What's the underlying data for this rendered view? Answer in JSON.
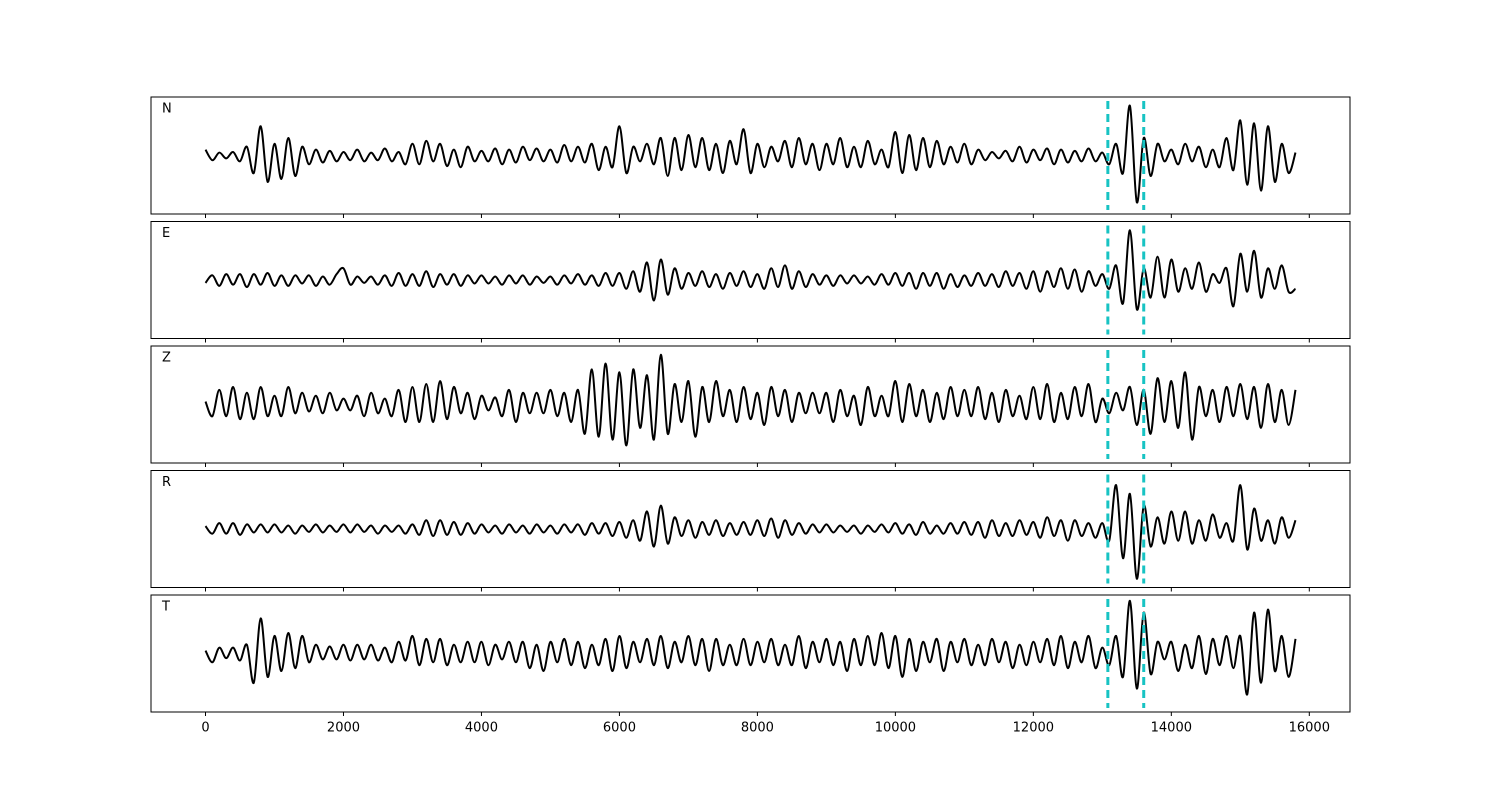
{
  "chart_data": {
    "type": "line",
    "subplots": true,
    "x": [
      0,
      100,
      200,
      300,
      400,
      500,
      600,
      700,
      800,
      900,
      1000,
      1100,
      1200,
      1300,
      1400,
      1500,
      1600,
      1700,
      1800,
      1900,
      2000,
      2100,
      2200,
      2300,
      2400,
      2500,
      2600,
      2700,
      2800,
      2900,
      3000,
      3100,
      3200,
      3300,
      3400,
      3500,
      3600,
      3700,
      3800,
      3900,
      4000,
      4100,
      4200,
      4300,
      4400,
      4500,
      4600,
      4700,
      4800,
      4900,
      5000,
      5100,
      5200,
      5300,
      5400,
      5500,
      5600,
      5700,
      5800,
      5900,
      6000,
      6100,
      6200,
      6300,
      6400,
      6500,
      6600,
      6700,
      6800,
      6900,
      7000,
      7100,
      7200,
      7300,
      7400,
      7500,
      7600,
      7700,
      7800,
      7900,
      8000,
      8100,
      8200,
      8300,
      8400,
      8500,
      8600,
      8700,
      8800,
      8900,
      9000,
      9100,
      9200,
      9300,
      9400,
      9500,
      9600,
      9700,
      9800,
      9900,
      10000,
      10100,
      10200,
      10300,
      10400,
      10500,
      10600,
      10700,
      10800,
      10900,
      11000,
      11100,
      11200,
      11300,
      11400,
      11500,
      11600,
      11700,
      11800,
      11900,
      12000,
      12100,
      12200,
      12300,
      12400,
      12500,
      12600,
      12700,
      12800,
      12900,
      13000,
      13100,
      13200,
      13300,
      13400,
      13500,
      13600,
      13700,
      13800,
      13900,
      14000,
      14100,
      14200,
      14300,
      14400,
      14500,
      14600,
      14700,
      14800,
      14900,
      15000,
      15100,
      15200,
      15300,
      15400,
      15500,
      15600,
      15700,
      15800
    ],
    "xlim": [
      -790,
      16590
    ],
    "xticks": [
      0,
      2000,
      4000,
      6000,
      8000,
      10000,
      12000,
      14000,
      16000
    ],
    "ylim": [
      -1,
      1
    ],
    "vlines": [
      13080,
      13600
    ],
    "vline_color": "#17c3c3",
    "series": [
      {
        "name": "N",
        "color": "#000000",
        "values": [
          0.1,
          -0.08,
          0.05,
          -0.05,
          0.06,
          -0.1,
          0.15,
          -0.3,
          0.5,
          -0.45,
          0.2,
          -0.4,
          0.3,
          -0.35,
          0.15,
          -0.15,
          0.1,
          -0.12,
          0.08,
          -0.1,
          0.06,
          -0.08,
          0.1,
          -0.1,
          0.05,
          -0.08,
          0.12,
          -0.1,
          0.06,
          -0.15,
          0.2,
          -0.15,
          0.25,
          -0.1,
          0.2,
          -0.18,
          0.1,
          -0.2,
          0.15,
          -0.1,
          0.08,
          -0.1,
          0.12,
          -0.15,
          0.1,
          -0.12,
          0.15,
          -0.08,
          0.12,
          -0.1,
          0.1,
          -0.12,
          0.18,
          -0.1,
          0.15,
          -0.12,
          0.2,
          -0.25,
          0.15,
          -0.2,
          0.5,
          -0.3,
          0.15,
          -0.1,
          0.2,
          -0.15,
          0.3,
          -0.35,
          0.3,
          -0.25,
          0.35,
          -0.2,
          0.3,
          -0.25,
          0.2,
          -0.3,
          0.25,
          -0.15,
          0.45,
          -0.3,
          0.2,
          -0.2,
          0.15,
          -0.1,
          0.25,
          -0.2,
          0.3,
          -0.15,
          0.2,
          -0.25,
          0.2,
          -0.15,
          0.3,
          -0.2,
          0.15,
          -0.2,
          0.25,
          -0.15,
          0.1,
          -0.2,
          0.4,
          -0.3,
          0.35,
          -0.25,
          0.3,
          -0.2,
          0.25,
          -0.15,
          0.15,
          -0.12,
          0.2,
          -0.15,
          0.1,
          -0.08,
          0.06,
          -0.05,
          0.08,
          -0.1,
          0.15,
          -0.12,
          0.1,
          -0.08,
          0.12,
          -0.15,
          0.1,
          -0.12,
          0.08,
          -0.1,
          0.12,
          -0.1,
          0.05,
          -0.15,
          0.2,
          -0.3,
          0.85,
          -0.8,
          0.3,
          -0.35,
          0.2,
          -0.1,
          0.1,
          -0.15,
          0.2,
          -0.1,
          0.15,
          -0.2,
          0.1,
          -0.2,
          0.3,
          -0.25,
          0.6,
          -0.5,
          0.55,
          -0.6,
          0.5,
          -0.45,
          0.2,
          -0.3,
          0.05
        ]
      },
      {
        "name": "E",
        "color": "#000000",
        "values": [
          -0.05,
          0.08,
          -0.1,
          0.1,
          -0.08,
          0.1,
          -0.12,
          0.1,
          -0.08,
          0.12,
          -0.1,
          0.08,
          -0.1,
          0.08,
          -0.06,
          0.08,
          -0.1,
          0.06,
          -0.08,
          0.1,
          0.2,
          -0.08,
          0.06,
          -0.05,
          0.06,
          -0.08,
          0.08,
          -0.1,
          0.12,
          -0.1,
          0.1,
          -0.1,
          0.15,
          -0.12,
          0.1,
          -0.08,
          0.1,
          -0.1,
          0.08,
          -0.06,
          0.08,
          -0.06,
          0.06,
          -0.08,
          0.08,
          -0.06,
          0.08,
          -0.08,
          0.06,
          -0.05,
          0.06,
          -0.08,
          0.08,
          -0.06,
          0.1,
          -0.08,
          0.08,
          -0.1,
          0.12,
          -0.1,
          0.12,
          -0.15,
          0.15,
          -0.2,
          0.3,
          -0.35,
          0.35,
          -0.25,
          0.2,
          -0.15,
          0.12,
          -0.1,
          0.15,
          -0.12,
          0.1,
          -0.15,
          0.12,
          -0.1,
          0.15,
          -0.12,
          0.1,
          -0.15,
          0.2,
          -0.12,
          0.25,
          -0.15,
          0.15,
          -0.12,
          0.1,
          -0.08,
          0.08,
          -0.1,
          0.08,
          -0.06,
          0.08,
          -0.06,
          0.06,
          -0.08,
          0.1,
          -0.08,
          0.12,
          -0.1,
          0.12,
          -0.15,
          0.12,
          -0.1,
          0.12,
          -0.15,
          0.1,
          -0.12,
          0.08,
          -0.1,
          0.12,
          -0.1,
          0.1,
          -0.12,
          0.15,
          -0.1,
          0.12,
          -0.15,
          0.15,
          -0.2,
          0.15,
          -0.12,
          0.2,
          -0.15,
          0.18,
          -0.2,
          0.15,
          -0.1,
          0.1,
          -0.15,
          0.25,
          -0.4,
          0.85,
          -0.5,
          0.2,
          -0.3,
          0.4,
          -0.3,
          0.35,
          -0.2,
          0.2,
          -0.15,
          0.3,
          -0.2,
          0.1,
          -0.05,
          0.2,
          -0.45,
          0.45,
          -0.2,
          0.5,
          -0.3,
          0.2,
          -0.15,
          0.25,
          -0.2,
          -0.15
        ]
      },
      {
        "name": "Z",
        "color": "#000000",
        "values": [
          0.05,
          -0.2,
          0.25,
          -0.2,
          0.3,
          -0.25,
          0.2,
          -0.25,
          0.3,
          -0.2,
          0.15,
          -0.2,
          0.3,
          -0.15,
          0.2,
          -0.12,
          0.15,
          -0.15,
          0.2,
          -0.1,
          0.1,
          -0.1,
          0.15,
          -0.2,
          0.2,
          -0.15,
          0.1,
          -0.2,
          0.25,
          -0.3,
          0.3,
          -0.3,
          0.35,
          -0.3,
          0.4,
          -0.25,
          0.3,
          -0.15,
          0.2,
          -0.25,
          0.15,
          -0.1,
          0.12,
          -0.2,
          0.25,
          -0.3,
          0.2,
          -0.15,
          0.2,
          -0.15,
          0.25,
          -0.2,
          0.2,
          -0.3,
          0.25,
          -0.5,
          0.6,
          -0.55,
          0.7,
          -0.6,
          0.55,
          -0.7,
          0.6,
          -0.4,
          0.5,
          -0.6,
          0.85,
          -0.5,
          0.35,
          -0.3,
          0.4,
          -0.55,
          0.3,
          -0.3,
          0.4,
          -0.2,
          0.25,
          -0.3,
          0.3,
          -0.25,
          0.2,
          -0.35,
          0.3,
          -0.2,
          0.25,
          -0.3,
          0.2,
          -0.15,
          0.2,
          -0.15,
          0.2,
          -0.3,
          0.25,
          -0.2,
          0.15,
          -0.35,
          0.3,
          -0.2,
          0.15,
          -0.2,
          0.4,
          -0.3,
          0.35,
          -0.2,
          0.25,
          -0.3,
          0.2,
          -0.25,
          0.3,
          -0.2,
          0.25,
          -0.2,
          0.3,
          -0.25,
          0.2,
          -0.3,
          0.25,
          -0.2,
          0.15,
          -0.25,
          0.3,
          -0.25,
          0.35,
          -0.3,
          0.2,
          -0.25,
          0.3,
          -0.2,
          0.35,
          -0.3,
          0.1,
          -0.15,
          0.2,
          -0.1,
          0.3,
          -0.35,
          0.25,
          -0.5,
          0.45,
          -0.3,
          0.4,
          -0.4,
          0.55,
          -0.6,
          0.3,
          -0.2,
          0.25,
          -0.3,
          0.3,
          -0.2,
          0.35,
          -0.25,
          0.3,
          -0.4,
          0.35,
          -0.3,
          0.25,
          -0.35,
          0.25
        ]
      },
      {
        "name": "R",
        "color": "#000000",
        "values": [
          0.05,
          -0.08,
          0.1,
          -0.08,
          0.1,
          -0.1,
          0.08,
          -0.06,
          0.08,
          -0.06,
          0.08,
          -0.06,
          0.06,
          -0.08,
          0.06,
          -0.05,
          0.08,
          -0.06,
          0.06,
          -0.05,
          0.08,
          -0.06,
          0.08,
          -0.05,
          0.06,
          -0.08,
          0.06,
          -0.05,
          0.06,
          -0.08,
          0.08,
          -0.1,
          0.15,
          -0.12,
          0.15,
          -0.1,
          0.12,
          -0.1,
          0.1,
          -0.08,
          0.08,
          -0.06,
          0.06,
          -0.08,
          0.08,
          -0.06,
          0.06,
          -0.08,
          0.08,
          -0.06,
          0.06,
          -0.08,
          0.08,
          -0.06,
          0.08,
          -0.1,
          0.1,
          -0.08,
          0.1,
          -0.12,
          0.12,
          -0.15,
          0.15,
          -0.2,
          0.3,
          -0.3,
          0.4,
          -0.25,
          0.2,
          -0.12,
          0.15,
          -0.15,
          0.12,
          -0.1,
          0.15,
          -0.12,
          0.1,
          -0.1,
          0.12,
          -0.1,
          0.15,
          -0.12,
          0.18,
          -0.15,
          0.15,
          -0.1,
          0.1,
          -0.08,
          0.08,
          -0.06,
          0.08,
          -0.06,
          0.06,
          -0.05,
          0.06,
          -0.08,
          0.06,
          -0.05,
          0.08,
          -0.06,
          0.1,
          -0.08,
          0.08,
          -0.1,
          0.12,
          -0.08,
          0.06,
          -0.08,
          0.1,
          -0.08,
          0.12,
          -0.1,
          0.12,
          -0.15,
          0.15,
          -0.12,
          0.1,
          -0.12,
          0.15,
          -0.1,
          0.12,
          -0.15,
          0.2,
          -0.12,
          0.15,
          -0.2,
          0.15,
          -0.12,
          0.1,
          -0.15,
          0.1,
          -0.2,
          0.75,
          -0.5,
          0.6,
          -0.85,
          0.4,
          -0.3,
          0.2,
          -0.25,
          0.3,
          -0.2,
          0.3,
          -0.25,
          0.15,
          -0.2,
          0.25,
          -0.15,
          0.1,
          -0.2,
          0.75,
          -0.35,
          0.35,
          -0.2,
          0.15,
          -0.25,
          0.2,
          -0.15,
          0.15
        ]
      },
      {
        "name": "T",
        "color": "#000000",
        "values": [
          0.05,
          -0.15,
          0.1,
          -0.08,
          0.1,
          -0.12,
          0.15,
          -0.5,
          0.6,
          -0.4,
          0.3,
          -0.3,
          0.35,
          -0.25,
          0.3,
          -0.15,
          0.15,
          -0.1,
          0.12,
          -0.1,
          0.15,
          -0.12,
          0.15,
          -0.1,
          0.15,
          -0.12,
          0.1,
          -0.15,
          0.2,
          -0.12,
          0.3,
          -0.2,
          0.25,
          -0.15,
          0.25,
          -0.2,
          0.15,
          -0.15,
          0.2,
          -0.15,
          0.2,
          -0.2,
          0.15,
          -0.1,
          0.2,
          -0.15,
          0.2,
          -0.25,
          0.15,
          -0.3,
          0.2,
          -0.15,
          0.25,
          -0.2,
          0.2,
          -0.25,
          0.15,
          -0.2,
          0.25,
          -0.3,
          0.3,
          -0.25,
          0.2,
          -0.15,
          0.25,
          -0.2,
          0.3,
          -0.25,
          0.2,
          -0.15,
          0.3,
          -0.2,
          0.25,
          -0.3,
          0.25,
          -0.2,
          0.15,
          -0.2,
          0.25,
          -0.2,
          0.2,
          -0.15,
          0.25,
          -0.2,
          0.15,
          -0.2,
          0.3,
          -0.25,
          0.2,
          -0.15,
          0.25,
          -0.2,
          0.2,
          -0.3,
          0.25,
          -0.2,
          0.3,
          -0.2,
          0.35,
          -0.25,
          0.3,
          -0.4,
          0.25,
          -0.3,
          0.2,
          -0.15,
          0.25,
          -0.3,
          0.2,
          -0.15,
          0.25,
          -0.2,
          0.15,
          -0.2,
          0.25,
          -0.15,
          0.2,
          -0.25,
          0.15,
          -0.2,
          0.2,
          -0.15,
          0.25,
          -0.2,
          0.3,
          -0.25,
          0.2,
          -0.15,
          0.3,
          -0.25,
          0.1,
          -0.2,
          0.3,
          -0.4,
          0.9,
          -0.6,
          0.7,
          -0.35,
          0.2,
          -0.1,
          0.2,
          -0.3,
          0.15,
          -0.25,
          0.3,
          -0.35,
          0.25,
          -0.2,
          0.3,
          -0.25,
          0.3,
          -0.7,
          0.7,
          -0.5,
          0.75,
          -0.3,
          0.3,
          -0.4,
          0.25
        ]
      }
    ]
  }
}
